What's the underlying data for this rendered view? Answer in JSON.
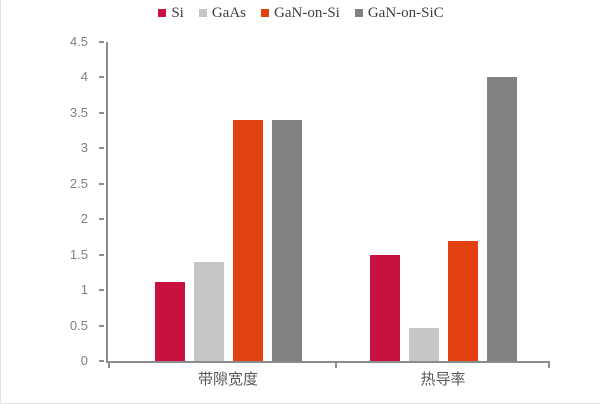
{
  "chart_data": {
    "type": "bar",
    "title": "",
    "xlabel": "",
    "ylabel": "",
    "categories": [
      "带隙宽度",
      "热导率"
    ],
    "series": [
      {
        "name": "Si",
        "color": "#c9113f",
        "values": [
          1.12,
          1.5
        ]
      },
      {
        "name": "GaAs",
        "color": "#c6c6c6",
        "values": [
          1.4,
          0.46
        ]
      },
      {
        "name": "GaN-on-Si",
        "color": "#e2420f",
        "values": [
          3.4,
          1.7
        ]
      },
      {
        "name": "GaN-on-SiC",
        "color": "#818181",
        "values": [
          3.4,
          4.0
        ]
      }
    ],
    "ylim": [
      0,
      4.5
    ],
    "ytick_step": 0.5,
    "ytick_labels": [
      "0",
      "0.5",
      "1",
      "1.5",
      "2",
      "2.5",
      "3",
      "3.5",
      "4",
      "4.5"
    ],
    "grid": false,
    "legend_position": "top",
    "axis_color": "#8c8c8c",
    "tick_label_color": "#808080",
    "category_label_color": "#595959"
  }
}
